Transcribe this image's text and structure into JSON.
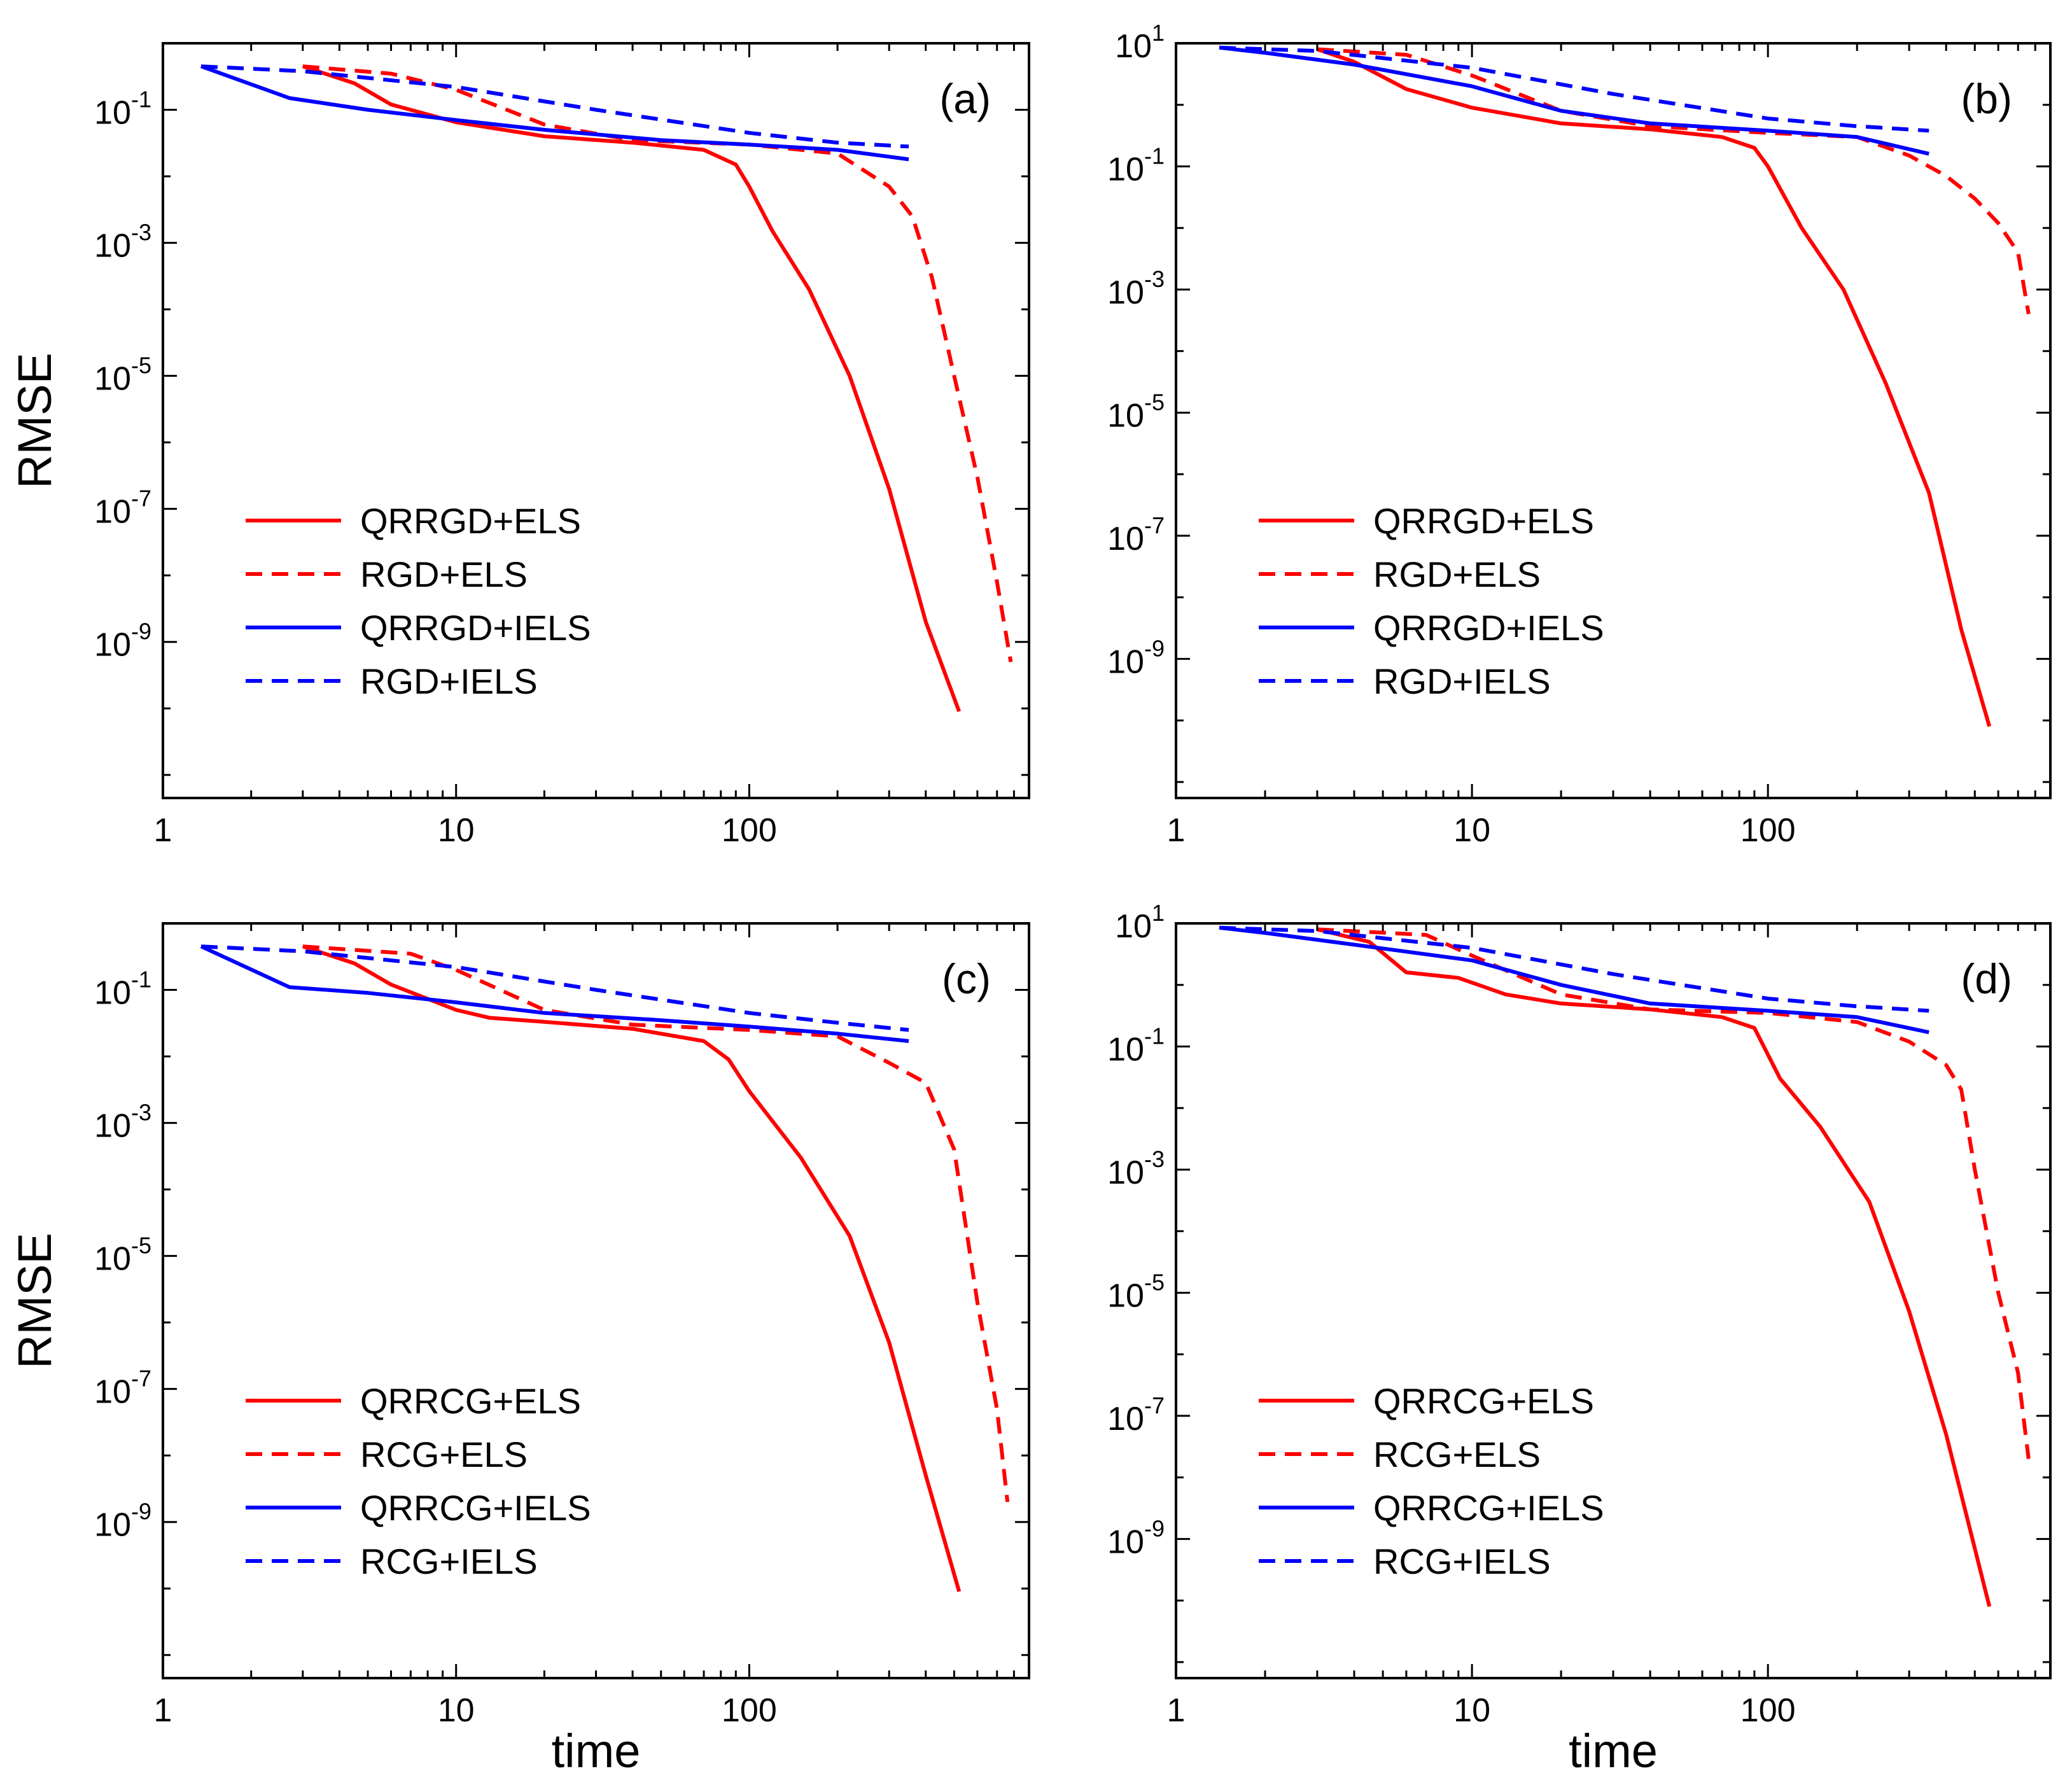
{
  "chart_data": [
    {
      "type": "line",
      "panel_label": "(a)",
      "xlabel": "",
      "ylabel": "RMSE",
      "xscale": "log",
      "yscale": "log",
      "xlim": [
        1,
        900
      ],
      "ylim": [
        4.5e-12,
        1.0
      ],
      "x_ticks": [
        {
          "value": 1,
          "label": "1"
        },
        {
          "value": 10,
          "label": "10"
        },
        {
          "value": 100,
          "label": "100"
        }
      ],
      "y_ticks": [
        {
          "value": 0.1,
          "label": "10",
          "exp": "-1"
        },
        {
          "value": 0.001,
          "label": "10",
          "exp": "-3"
        },
        {
          "value": 1e-05,
          "label": "10",
          "exp": "-5"
        },
        {
          "value": 1e-07,
          "label": "10",
          "exp": "-7"
        },
        {
          "value": 1e-09,
          "label": "10",
          "exp": "-9"
        }
      ],
      "legend_position": "bottom-left",
      "series": [
        {
          "name": "QRRGD+ELS",
          "color": "#ff0000",
          "dash": "solid",
          "x": [
            3.0,
            4.5,
            6,
            10,
            20,
            40,
            70,
            90,
            100,
            120,
            160,
            220,
            300,
            400,
            520
          ],
          "y": [
            0.45,
            0.25,
            0.12,
            0.065,
            0.04,
            0.032,
            0.025,
            0.015,
            0.007,
            0.0015,
            0.0002,
            1e-05,
            2e-07,
            2e-09,
            9e-11
          ]
        },
        {
          "name": "RGD+ELS",
          "color": "#ff0000",
          "dash": "dashed",
          "x": [
            3.0,
            6,
            10,
            20,
            40,
            100,
            200,
            300,
            360,
            420,
            500,
            600,
            700,
            780
          ],
          "y": [
            0.45,
            0.35,
            0.2,
            0.06,
            0.035,
            0.03,
            0.022,
            0.007,
            0.0025,
            0.0003,
            1e-05,
            3e-07,
            8e-09,
            5e-10
          ]
        },
        {
          "name": "QRRGD+IELS",
          "color": "#0000ff",
          "dash": "solid",
          "x": [
            1.35,
            2.7,
            5,
            10,
            20,
            50,
            100,
            200,
            350
          ],
          "y": [
            0.45,
            0.15,
            0.1,
            0.07,
            0.05,
            0.035,
            0.03,
            0.025,
            0.018
          ]
        },
        {
          "name": "RGD+IELS",
          "color": "#0000ff",
          "dash": "dashed",
          "x": [
            1.35,
            3,
            10,
            30,
            100,
            200,
            350
          ],
          "y": [
            0.45,
            0.38,
            0.22,
            0.1,
            0.045,
            0.032,
            0.028
          ]
        }
      ]
    },
    {
      "type": "line",
      "panel_label": "(b)",
      "xlabel": "",
      "ylabel": "",
      "xscale": "log",
      "yscale": "log",
      "xlim": [
        1,
        900
      ],
      "ylim": [
        5.5e-12,
        10.0
      ],
      "x_ticks": [
        {
          "value": 1,
          "label": "1"
        },
        {
          "value": 10,
          "label": "10"
        },
        {
          "value": 100,
          "label": "100"
        }
      ],
      "y_ticks": [
        {
          "value": 10,
          "label": "10",
          "exp": "1"
        },
        {
          "value": 0.1,
          "label": "10",
          "exp": "-1"
        },
        {
          "value": 0.001,
          "label": "10",
          "exp": "-3"
        },
        {
          "value": 1e-05,
          "label": "10",
          "exp": "-5"
        },
        {
          "value": 1e-07,
          "label": "10",
          "exp": "-7"
        },
        {
          "value": 1e-09,
          "label": "10",
          "exp": "-9"
        }
      ],
      "legend_position": "bottom-left",
      "series": [
        {
          "name": "QRRGD+ELS",
          "color": "#ff0000",
          "dash": "solid",
          "x": [
            3.0,
            4,
            6,
            10,
            20,
            40,
            70,
            90,
            100,
            130,
            180,
            250,
            350,
            450,
            560
          ],
          "y": [
            8.0,
            5.0,
            1.8,
            0.9,
            0.5,
            0.4,
            0.3,
            0.2,
            0.1,
            0.01,
            0.001,
            3e-05,
            5e-07,
            3e-09,
            8e-11
          ]
        },
        {
          "name": "RGD+ELS",
          "color": "#ff0000",
          "dash": "dashed",
          "x": [
            3.0,
            6,
            10,
            20,
            40,
            100,
            200,
            300,
            400,
            500,
            600,
            700,
            760
          ],
          "y": [
            8.0,
            6.5,
            3.0,
            0.8,
            0.45,
            0.35,
            0.3,
            0.15,
            0.07,
            0.03,
            0.012,
            0.004,
            0.0004
          ]
        },
        {
          "name": "QRRGD+IELS",
          "color": "#0000ff",
          "dash": "solid",
          "x": [
            1.4,
            2,
            4,
            10,
            20,
            40,
            100,
            200,
            350
          ],
          "y": [
            8.5,
            7.0,
            4.5,
            2.0,
            0.8,
            0.5,
            0.38,
            0.3,
            0.16
          ]
        },
        {
          "name": "RGD+IELS",
          "color": "#0000ff",
          "dash": "dashed",
          "x": [
            1.4,
            3,
            10,
            30,
            100,
            200,
            350
          ],
          "y": [
            8.5,
            7.5,
            4.0,
            1.5,
            0.6,
            0.45,
            0.38
          ]
        }
      ]
    },
    {
      "type": "line",
      "panel_label": "(c)",
      "xlabel": "time",
      "ylabel": "RMSE",
      "xscale": "log",
      "yscale": "log",
      "xlim": [
        1,
        900
      ],
      "ylim": [
        4.5e-12,
        1.0
      ],
      "x_ticks": [
        {
          "value": 1,
          "label": "1"
        },
        {
          "value": 10,
          "label": "10"
        },
        {
          "value": 100,
          "label": "100"
        }
      ],
      "y_ticks": [
        {
          "value": 0.1,
          "label": "10",
          "exp": "-1"
        },
        {
          "value": 0.001,
          "label": "10",
          "exp": "-3"
        },
        {
          "value": 1e-05,
          "label": "10",
          "exp": "-5"
        },
        {
          "value": 1e-07,
          "label": "10",
          "exp": "-7"
        },
        {
          "value": 1e-09,
          "label": "10",
          "exp": "-9"
        }
      ],
      "legend_position": "bottom-left",
      "series": [
        {
          "name": "QRRCG+ELS",
          "color": "#ff0000",
          "dash": "solid",
          "x": [
            3.0,
            4.5,
            6,
            10,
            13,
            20,
            40,
            70,
            85,
            100,
            150,
            220,
            300,
            400,
            520
          ],
          "y": [
            0.45,
            0.25,
            0.12,
            0.05,
            0.038,
            0.033,
            0.026,
            0.017,
            0.009,
            0.003,
            0.0003,
            2e-05,
            5e-07,
            5e-09,
            9e-11
          ]
        },
        {
          "name": "RCG+ELS",
          "color": "#ff0000",
          "dash": "dashed",
          "x": [
            3.0,
            7,
            10,
            20,
            40,
            100,
            200,
            300,
            400,
            500,
            600,
            700,
            760
          ],
          "y": [
            0.45,
            0.35,
            0.2,
            0.05,
            0.03,
            0.025,
            0.02,
            0.008,
            0.004,
            0.0004,
            2e-06,
            5e-08,
            2e-09
          ]
        },
        {
          "name": "QRRCG+IELS",
          "color": "#0000ff",
          "dash": "solid",
          "x": [
            1.35,
            2.7,
            5,
            10,
            20,
            50,
            100,
            200,
            350
          ],
          "y": [
            0.45,
            0.11,
            0.09,
            0.065,
            0.045,
            0.035,
            0.028,
            0.022,
            0.017
          ]
        },
        {
          "name": "RCG+IELS",
          "color": "#0000ff",
          "dash": "dashed",
          "x": [
            1.35,
            3,
            10,
            30,
            100,
            200,
            350
          ],
          "y": [
            0.45,
            0.38,
            0.22,
            0.1,
            0.045,
            0.032,
            0.025
          ]
        }
      ]
    },
    {
      "type": "line",
      "panel_label": "(d)",
      "xlabel": "time",
      "ylabel": "",
      "xscale": "log",
      "yscale": "log",
      "xlim": [
        1,
        900
      ],
      "ylim": [
        5.5e-12,
        10.0
      ],
      "x_ticks": [
        {
          "value": 1,
          "label": "1"
        },
        {
          "value": 10,
          "label": "10"
        },
        {
          "value": 100,
          "label": "100"
        }
      ],
      "y_ticks": [
        {
          "value": 10,
          "label": "10",
          "exp": "1"
        },
        {
          "value": 0.1,
          "label": "10",
          "exp": "-1"
        },
        {
          "value": 0.001,
          "label": "10",
          "exp": "-3"
        },
        {
          "value": 1e-05,
          "label": "10",
          "exp": "-5"
        },
        {
          "value": 1e-07,
          "label": "10",
          "exp": "-7"
        },
        {
          "value": 1e-09,
          "label": "10",
          "exp": "-9"
        }
      ],
      "legend_position": "bottom-left",
      "series": [
        {
          "name": "QRRCG+ELS",
          "color": "#ff0000",
          "dash": "solid",
          "x": [
            3.0,
            4.5,
            6,
            9,
            13,
            20,
            40,
            70,
            90,
            110,
            150,
            220,
            300,
            400,
            560
          ],
          "y": [
            8.0,
            5.0,
            1.6,
            1.3,
            0.7,
            0.5,
            0.4,
            0.3,
            0.2,
            0.03,
            0.005,
            0.0003,
            5e-06,
            5e-08,
            8e-11
          ]
        },
        {
          "name": "RCG+ELS",
          "color": "#ff0000",
          "dash": "dashed",
          "x": [
            3.0,
            7,
            10,
            20,
            40,
            100,
            200,
            300,
            400,
            450,
            500,
            600,
            700,
            760
          ],
          "y": [
            8.0,
            6.5,
            3.0,
            0.7,
            0.4,
            0.35,
            0.25,
            0.12,
            0.05,
            0.02,
            0.001,
            1e-05,
            5e-07,
            2e-08
          ]
        },
        {
          "name": "QRRCG+IELS",
          "color": "#0000ff",
          "dash": "solid",
          "x": [
            1.4,
            2,
            4,
            10,
            20,
            40,
            100,
            200,
            350
          ],
          "y": [
            8.5,
            7.0,
            4.5,
            2.5,
            1.0,
            0.5,
            0.38,
            0.3,
            0.17
          ]
        },
        {
          "name": "RCG+IELS",
          "color": "#0000ff",
          "dash": "dashed",
          "x": [
            1.4,
            3,
            10,
            30,
            100,
            200,
            350
          ],
          "y": [
            8.5,
            7.5,
            4.0,
            1.5,
            0.6,
            0.45,
            0.38
          ]
        }
      ]
    }
  ]
}
